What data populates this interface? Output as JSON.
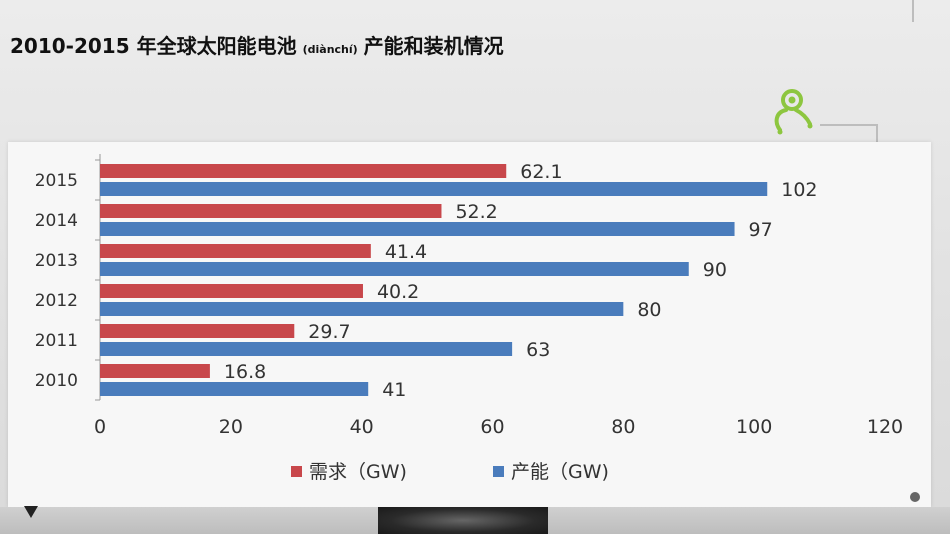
{
  "slide": {
    "title_main": "2010-2015 年全球太阳能电池",
    "title_pinyin": "(diànchí)",
    "title_tail": "产能和装机情况"
  },
  "logo": {
    "icon": "person-lens-logo-icon",
    "color": "#8dc63f"
  },
  "chart_data": {
    "type": "bar",
    "orientation": "horizontal",
    "categories": [
      "2015",
      "2014",
      "2013",
      "2012",
      "2011",
      "2010"
    ],
    "series": [
      {
        "name": "需求（GW)",
        "color": "#c8474b",
        "values": [
          62.1,
          52.2,
          41.4,
          40.2,
          29.7,
          16.8
        ],
        "labels": [
          "62.1",
          "52.2",
          "41.4",
          "40.2",
          "29.7",
          "16.8"
        ]
      },
      {
        "name": "产能（GW)",
        "color": "#4a7cbc",
        "values": [
          102,
          97,
          90,
          80,
          63,
          41
        ],
        "labels": [
          "102",
          "97",
          "90",
          "80",
          "63",
          "41"
        ]
      }
    ],
    "xlim": [
      0,
      120
    ],
    "xticks": [
      "0",
      "20",
      "40",
      "60",
      "80",
      "100",
      "120"
    ],
    "grid": false,
    "legend": "bottom"
  }
}
